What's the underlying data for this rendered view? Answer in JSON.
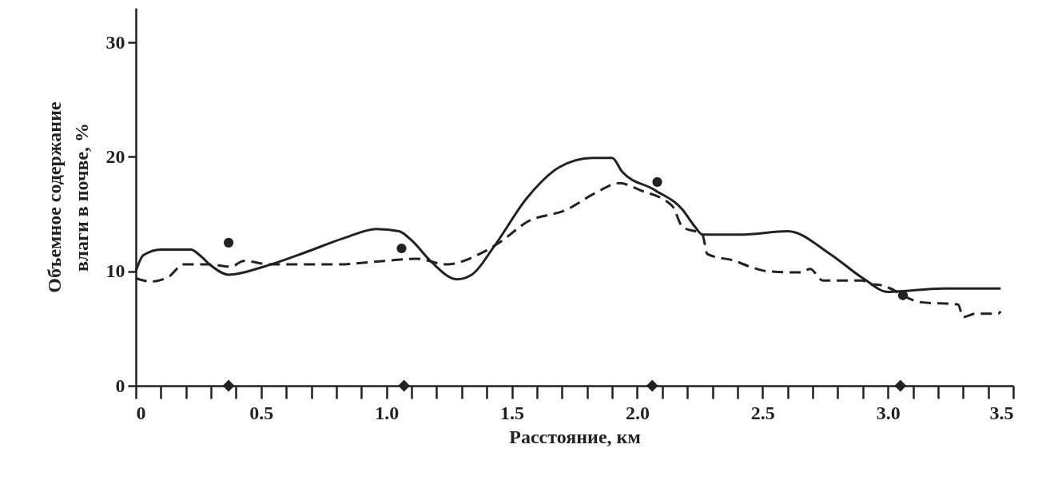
{
  "chart_data": {
    "type": "line",
    "xlabel": "Расстояние, км",
    "ylabel": "Объемное содержание\nвлаги в почве, %",
    "xlim": [
      0,
      3.5
    ],
    "ylim": [
      0,
      33
    ],
    "xticks": [
      0,
      {
        "value": 0.1,
        "label": null
      },
      {
        "value": 0.2,
        "label": null
      },
      {
        "value": 0.3,
        "label": null
      },
      {
        "value": 0.4,
        "label": null
      },
      {
        "value": 0.5,
        "label": "0.5"
      },
      {
        "value": 0.6,
        "label": null
      },
      {
        "value": 0.7,
        "label": null
      },
      {
        "value": 0.8,
        "label": null
      },
      {
        "value": 0.9,
        "label": null
      },
      {
        "value": 1,
        "label": "1.0"
      },
      {
        "value": 1.1,
        "label": null
      },
      {
        "value": 1.2,
        "label": null
      },
      {
        "value": 1.3,
        "label": null
      },
      {
        "value": 1.4,
        "label": null
      },
      {
        "value": 1.5,
        "label": "1.5"
      },
      {
        "value": 1.6,
        "label": null
      },
      {
        "value": 1.7,
        "label": null
      },
      {
        "value": 1.8,
        "label": null
      },
      {
        "value": 1.9,
        "label": null
      },
      {
        "value": 2,
        "label": "2.0"
      },
      {
        "value": 2.1,
        "label": null
      },
      {
        "value": 2.2,
        "label": null
      },
      {
        "value": 2.3,
        "label": null
      },
      {
        "value": 2.4,
        "label": null
      },
      {
        "value": 2.5,
        "label": "2.5"
      },
      {
        "value": 2.6,
        "label": null
      },
      {
        "value": 2.7,
        "label": null
      },
      {
        "value": 2.8,
        "label": null
      },
      {
        "value": 2.9,
        "label": null
      },
      {
        "value": 3,
        "label": "3.0"
      },
      {
        "value": 3.1,
        "label": null
      },
      {
        "value": 3.2,
        "label": null
      },
      {
        "value": 3.3,
        "label": null
      },
      {
        "value": 3.4,
        "label": null
      },
      {
        "value": 3.5,
        "label": "3.5"
      }
    ],
    "yticks": [
      0,
      10,
      20,
      30
    ],
    "grid": false,
    "series": [
      {
        "type": "line",
        "line_style": "solid",
        "color": "#222222",
        "x": [
          0,
          0.03,
          0.1,
          0.22,
          0.25,
          0.3,
          0.37,
          0.51,
          0.67,
          0.83,
          0.96,
          1.05,
          1.1,
          1.18,
          1.28,
          1.34,
          1.43,
          1.56,
          1.69,
          1.82,
          1.9,
          1.94,
          2.07,
          2.18,
          2.23,
          2.26,
          2.41,
          2.6,
          2.77,
          2.9,
          3.0,
          3.22,
          3.45
        ],
        "values": [
          10,
          11.4,
          11.9,
          11.9,
          11.5,
          10.5,
          9.7,
          10.4,
          11.6,
          12.9,
          13.7,
          13.5,
          12.7,
          10.8,
          9.3,
          9.7,
          12.2,
          16.4,
          19.1,
          19.9,
          19.9,
          18.7,
          17.1,
          15.4,
          13.9,
          13.2,
          13.2,
          13.5,
          11.5,
          9.4,
          8.2,
          8.5,
          8.5
        ]
      },
      {
        "type": "line",
        "line_style": "dashed",
        "color": "#222222",
        "x": [
          0,
          0.06,
          0.13,
          0.19,
          0.29,
          0.38,
          0.43,
          0.54,
          0.8,
          0.99,
          1.12,
          1.24,
          1.37,
          1.45,
          1.56,
          1.72,
          1.83,
          1.93,
          2.01,
          2.14,
          2.18,
          2.26,
          2.28,
          2.39,
          2.45,
          2.52,
          2.65,
          2.69,
          2.74,
          2.9,
          2.92,
          2.97,
          3.13,
          3.28,
          3.3,
          3.35,
          3.44,
          3.45
        ],
        "values": [
          9.4,
          9.1,
          9.5,
          10.6,
          10.6,
          10.4,
          10.9,
          10.6,
          10.6,
          10.9,
          11.1,
          10.6,
          11.5,
          12.5,
          14.3,
          15.4,
          16.8,
          17.7,
          17.1,
          15.7,
          13.9,
          13.2,
          11.5,
          10.9,
          10.4,
          10.0,
          9.9,
          10.2,
          9.2,
          9.2,
          8.9,
          8.8,
          7.3,
          7.1,
          6.0,
          6.3,
          6.3,
          6.5
        ]
      },
      {
        "type": "scatter",
        "marker": "circle",
        "color": "#222222",
        "x": [
          0.37,
          1.06,
          2.08,
          3.06
        ],
        "values": [
          12.5,
          12.0,
          17.8,
          7.9
        ]
      },
      {
        "type": "scatter",
        "marker": "diamond",
        "color": "#222222",
        "x": [
          0.37,
          1.07,
          2.06,
          3.05
        ],
        "values": [
          0,
          0,
          0,
          0
        ]
      }
    ]
  }
}
